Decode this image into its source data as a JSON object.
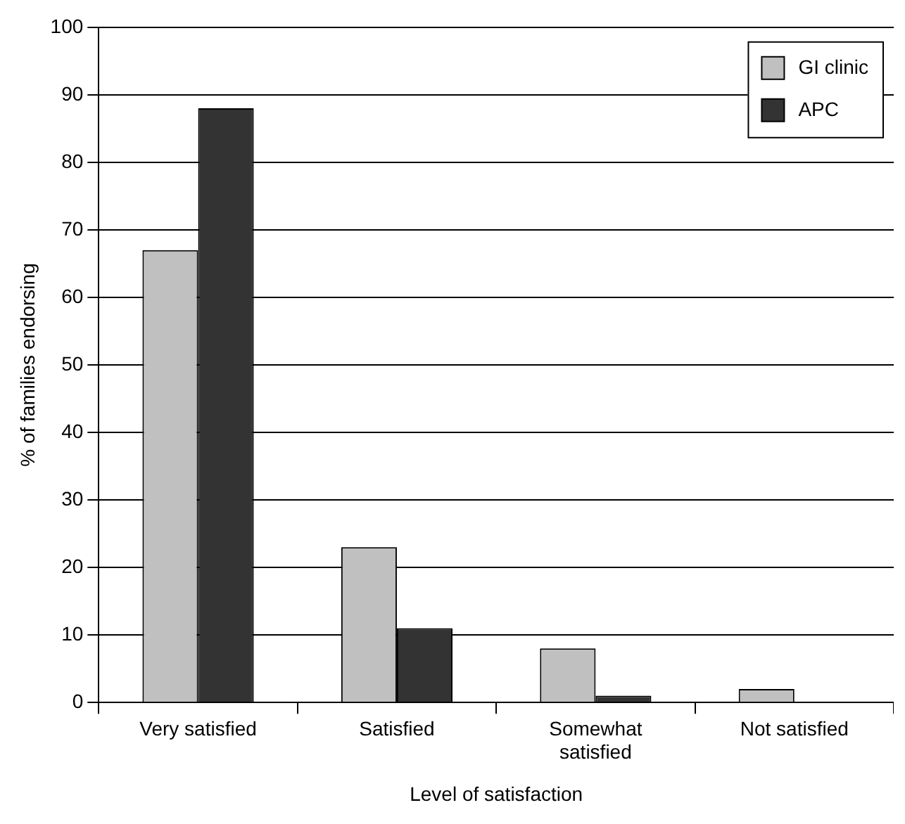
{
  "chart_data": {
    "type": "bar",
    "xlabel": "Level of satisfaction",
    "ylabel": "% of families endorsing",
    "categories": [
      "Very satisfied",
      "Satisfied",
      "Somewhat satisfied",
      "Not satisfied"
    ],
    "series": [
      {
        "name": "GI clinic",
        "color": "#c0c0c0",
        "values": [
          67,
          23,
          8,
          2
        ]
      },
      {
        "name": "APC",
        "color": "#333333",
        "values": [
          88,
          11,
          1,
          0
        ]
      }
    ],
    "ylim": [
      0,
      100
    ],
    "yticks": [
      0,
      10,
      20,
      30,
      40,
      50,
      60,
      70,
      80,
      90,
      100
    ],
    "grid": "y",
    "legend": "top right"
  }
}
